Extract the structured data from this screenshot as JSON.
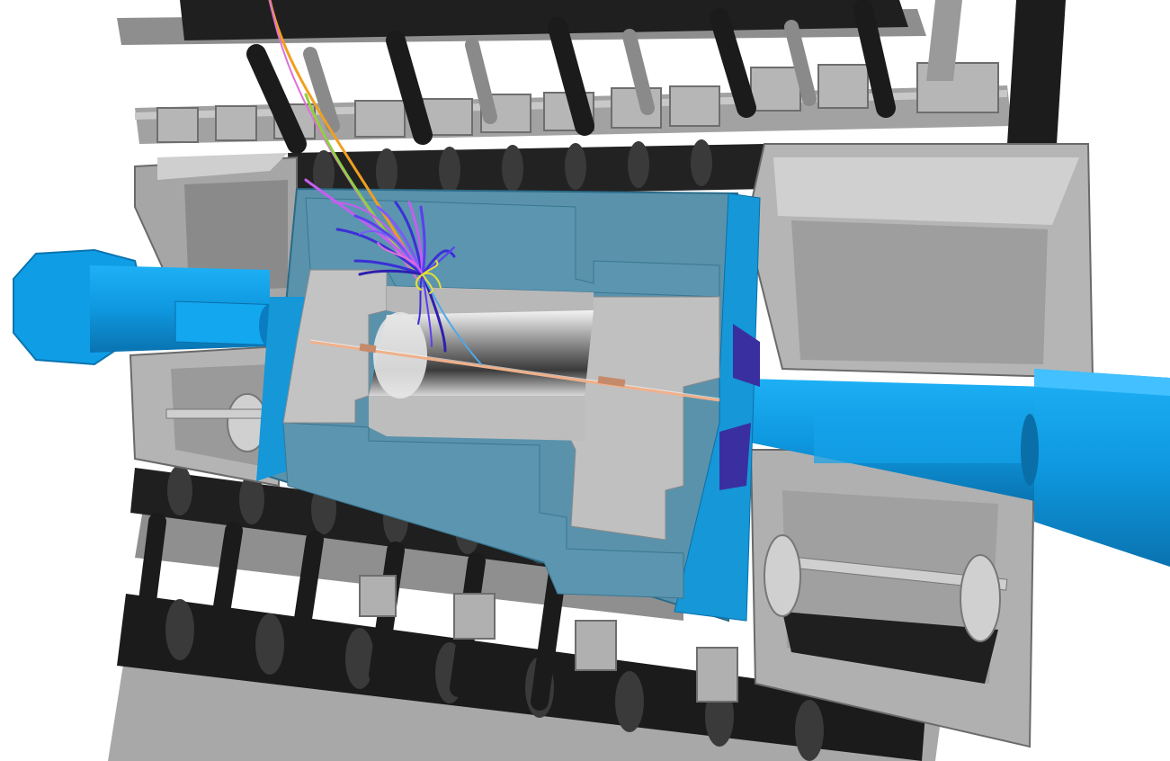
{
  "scene": {
    "kind": "3D detector event display",
    "colors": {
      "background": "#ffffff",
      "structure_dark": "#1e1e1e",
      "structure_grey": "#9a9a9a",
      "structure_light": "#c4c4c4",
      "calorimeter": "#5b93ad",
      "calorimeter_edge": "#1597d8",
      "beampipe": "#0f9ee6",
      "beampipe_dark": "#0a6fa8",
      "tracks": [
        "#3b2fd6",
        "#5a3ff0",
        "#7a5cf5",
        "#c45ef0",
        "#e070d8",
        "#f0a020",
        "#8fd040",
        "#e8e030"
      ]
    },
    "icons": [
      "detector-structure",
      "particle-tracks",
      "beam-pipe"
    ]
  }
}
